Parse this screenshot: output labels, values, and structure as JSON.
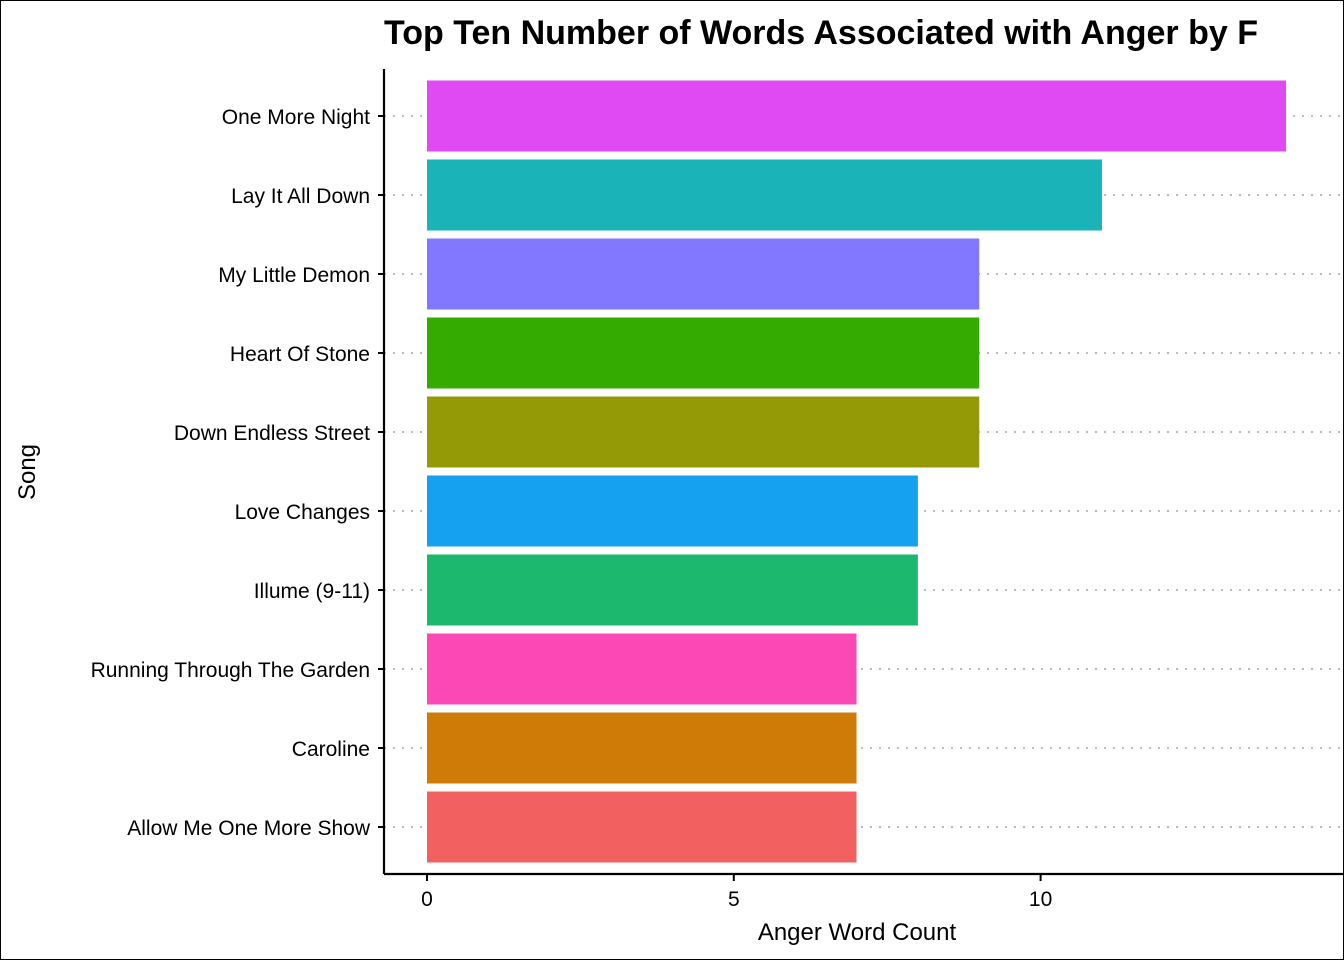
{
  "chart_data": {
    "type": "bar",
    "orientation": "horizontal",
    "title": "Top Ten Number of Words Associated with Anger by F",
    "xlabel": "Anger Word Count",
    "ylabel": "Song",
    "xlim": [
      0,
      14.7
    ],
    "xticks": [
      "0",
      "5",
      "10"
    ],
    "grid": "horizontal dotted",
    "legend": "none",
    "categories": [
      "One More Night",
      "Lay It All Down",
      "My Little Demon",
      "Heart Of Stone",
      "Down Endless Street",
      "Love Changes",
      "Illume (9-11)",
      "Running Through The Garden",
      "Caroline",
      "Allow Me One More Show"
    ],
    "values": [
      14,
      11,
      9,
      9,
      9,
      8,
      8,
      7,
      7,
      7
    ],
    "colors": [
      "#E04AF2",
      "#1AB3B8",
      "#8278FF",
      "#34AB00",
      "#939A05",
      "#16A0F0",
      "#1BB86E",
      "#FC48B4",
      "#CE7C07",
      "#F26060"
    ]
  }
}
